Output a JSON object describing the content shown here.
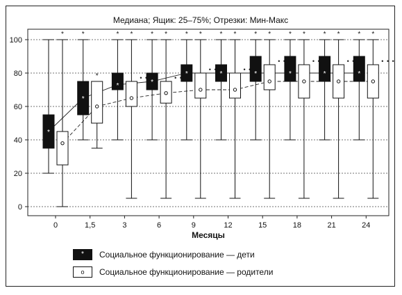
{
  "chart_data": {
    "type": "boxplot",
    "title": "Медиана; Ящик: 25–75%; Отрезки: Мин-Макс",
    "xlabel": "Месяцы",
    "ylabel": "",
    "categories": [
      "0",
      "1,5",
      "3",
      "6",
      "9",
      "12",
      "15",
      "18",
      "21",
      "24"
    ],
    "ylim": [
      -5,
      105
    ],
    "yticks": [
      0,
      20,
      40,
      60,
      80,
      100
    ],
    "grid": "horizontal-dashed",
    "legend_position": "bottom",
    "significance_marker": "*",
    "series": [
      {
        "name": "Социальное функционирование — дети",
        "style": "filled-dark",
        "median_marker": "*",
        "min": [
          20,
          40,
          40,
          40,
          40,
          40,
          40,
          40,
          40,
          40
        ],
        "q1": [
          35,
          55,
          70,
          70,
          75,
          75,
          75,
          75,
          75,
          75
        ],
        "median": [
          45,
          65,
          73,
          75,
          80,
          80,
          80,
          80,
          80,
          80
        ],
        "q3": [
          55,
          75,
          80,
          80,
          85,
          85,
          90,
          90,
          90,
          90
        ],
        "max": [
          100,
          100,
          100,
          100,
          100,
          100,
          100,
          100,
          100,
          100
        ],
        "stars": [
          false,
          true,
          true,
          true,
          true,
          true,
          true,
          true,
          true,
          true
        ]
      },
      {
        "name": "Социальное функционирование — родители",
        "style": "open",
        "median_marker": "o",
        "min": [
          0,
          35,
          5,
          5,
          5,
          5,
          5,
          5,
          5,
          5
        ],
        "q1": [
          25,
          50,
          60,
          62,
          65,
          65,
          70,
          65,
          65,
          65
        ],
        "median": [
          38,
          60,
          65,
          68,
          70,
          70,
          75,
          75,
          75,
          75
        ],
        "q3": [
          45,
          75,
          75,
          75,
          80,
          80,
          85,
          85,
          85,
          85
        ],
        "max": [
          100,
          75,
          100,
          100,
          100,
          100,
          100,
          100,
          100,
          100
        ],
        "stars": [
          true,
          true,
          true,
          true,
          true,
          true,
          true,
          true,
          true,
          true
        ]
      }
    ]
  }
}
